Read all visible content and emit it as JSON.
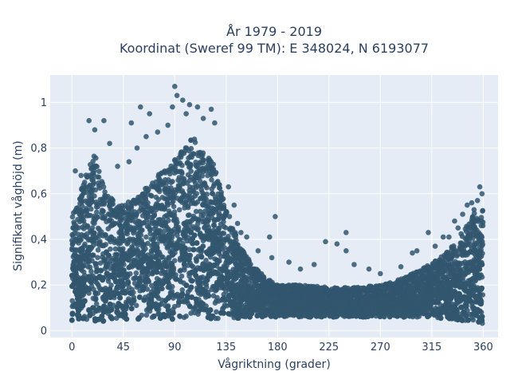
{
  "chart_data": {
    "type": "scatter",
    "title_line1": "År 1979 - 2019",
    "title_line2": "Koordinat (Sweref 99 TM): E 348024, N 6193077",
    "xlabel": "Vågriktning (grader)",
    "ylabel": "Signifikant våghöjd (m)",
    "xlim": [
      -19,
      373
    ],
    "ylim": [
      -0.03,
      1.12
    ],
    "x_ticks": [
      0,
      45,
      90,
      135,
      180,
      225,
      270,
      315,
      360
    ],
    "y_ticks": [
      0,
      0.2,
      0.4,
      0.6,
      0.8,
      1
    ],
    "y_tick_labels": [
      "0",
      "0,2",
      "0,4",
      "0,6",
      "0,8",
      "1"
    ],
    "grid": true,
    "legend": "none",
    "colors": {
      "marker": "#31566e",
      "plot_bg": "#e5ecf6",
      "grid": "#ffffff",
      "text": "#2a3f5f"
    },
    "envelope": {
      "x": [
        0,
        10,
        20,
        30,
        45,
        60,
        75,
        90,
        105,
        115,
        125,
        135,
        145,
        150,
        160,
        170,
        180,
        200,
        225,
        250,
        270,
        290,
        310,
        320,
        330,
        340,
        345,
        350,
        355,
        360
      ],
      "upper": [
        0.5,
        0.65,
        0.78,
        0.6,
        0.55,
        0.6,
        0.68,
        0.75,
        0.85,
        0.8,
        0.72,
        0.55,
        0.4,
        0.35,
        0.28,
        0.23,
        0.2,
        0.2,
        0.19,
        0.19,
        0.2,
        0.23,
        0.28,
        0.32,
        0.35,
        0.42,
        0.46,
        0.5,
        0.53,
        0.53
      ],
      "lower": [
        0.04,
        0.04,
        0.04,
        0.04,
        0.05,
        0.05,
        0.05,
        0.05,
        0.05,
        0.05,
        0.05,
        0.05,
        0.05,
        0.05,
        0.06,
        0.06,
        0.06,
        0.06,
        0.06,
        0.06,
        0.06,
        0.06,
        0.06,
        0.05,
        0.05,
        0.04,
        0.04,
        0.04,
        0.03,
        0.03
      ]
    },
    "outliers": [
      {
        "x": 15,
        "y": 0.92
      },
      {
        "x": 28,
        "y": 0.92
      },
      {
        "x": 20,
        "y": 0.88
      },
      {
        "x": 60,
        "y": 0.98
      },
      {
        "x": 52,
        "y": 0.91
      },
      {
        "x": 68,
        "y": 0.95
      },
      {
        "x": 88,
        "y": 0.98
      },
      {
        "x": 90,
        "y": 1.07
      },
      {
        "x": 92,
        "y": 1.03
      },
      {
        "x": 97,
        "y": 1.01
      },
      {
        "x": 103,
        "y": 0.99
      },
      {
        "x": 110,
        "y": 0.98
      },
      {
        "x": 115,
        "y": 0.93
      },
      {
        "x": 122,
        "y": 0.97
      },
      {
        "x": 125,
        "y": 0.91
      },
      {
        "x": 100,
        "y": 0.95
      },
      {
        "x": 3,
        "y": 0.7
      },
      {
        "x": 8,
        "y": 0.68
      },
      {
        "x": 33,
        "y": 0.82
      },
      {
        "x": 40,
        "y": 0.72
      },
      {
        "x": 50,
        "y": 0.74
      },
      {
        "x": 57,
        "y": 0.8
      },
      {
        "x": 65,
        "y": 0.85
      },
      {
        "x": 75,
        "y": 0.87
      },
      {
        "x": 84,
        "y": 0.9
      },
      {
        "x": 145,
        "y": 0.47
      },
      {
        "x": 148,
        "y": 0.43
      },
      {
        "x": 153,
        "y": 0.41
      },
      {
        "x": 137,
        "y": 0.63
      },
      {
        "x": 142,
        "y": 0.55
      },
      {
        "x": 163,
        "y": 0.35
      },
      {
        "x": 173,
        "y": 0.41
      },
      {
        "x": 178,
        "y": 0.5
      },
      {
        "x": 175,
        "y": 0.32
      },
      {
        "x": 190,
        "y": 0.3
      },
      {
        "x": 200,
        "y": 0.27
      },
      {
        "x": 212,
        "y": 0.29
      },
      {
        "x": 222,
        "y": 0.39
      },
      {
        "x": 232,
        "y": 0.38
      },
      {
        "x": 240,
        "y": 0.43
      },
      {
        "x": 240,
        "y": 0.35
      },
      {
        "x": 247,
        "y": 0.29
      },
      {
        "x": 260,
        "y": 0.27
      },
      {
        "x": 288,
        "y": 0.28
      },
      {
        "x": 298,
        "y": 0.34
      },
      {
        "x": 302,
        "y": 0.35
      },
      {
        "x": 312,
        "y": 0.43
      },
      {
        "x": 318,
        "y": 0.37
      },
      {
        "x": 325,
        "y": 0.41
      },
      {
        "x": 330,
        "y": 0.41
      },
      {
        "x": 338,
        "y": 0.45
      },
      {
        "x": 342,
        "y": 0.51
      },
      {
        "x": 346,
        "y": 0.55
      },
      {
        "x": 350,
        "y": 0.56
      },
      {
        "x": 355,
        "y": 0.57
      },
      {
        "x": 357,
        "y": 0.63
      },
      {
        "x": 359,
        "y": 0.6
      },
      {
        "x": 352,
        "y": 0.53
      },
      {
        "x": 335,
        "y": 0.48
      },
      {
        "x": 270,
        "y": 0.25
      }
    ]
  }
}
